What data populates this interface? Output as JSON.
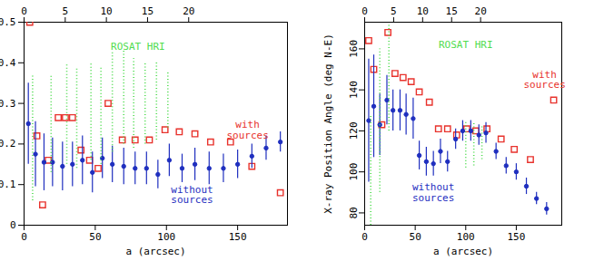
{
  "chart_data": [
    {
      "type": "scatter",
      "xlabel": "a (arcsec)",
      "xlim": [
        0,
        185
      ],
      "xticks": [
        0,
        50,
        100,
        150
      ],
      "x2lim": [
        0,
        32
      ],
      "x2ticks": [
        0,
        5,
        10,
        15,
        20
      ],
      "ylim": [
        0,
        0.5
      ],
      "yticks": [
        0,
        0.1,
        0.2,
        0.3,
        0.4,
        0.5
      ],
      "series": [
        {
          "name": "with sources",
          "type": "scatter",
          "color": "#e8322c",
          "marker": "square",
          "x": [
            4,
            9,
            13,
            17,
            24,
            29,
            34,
            40,
            46,
            52,
            59,
            69,
            78,
            88,
            99,
            109,
            120,
            131,
            145,
            160,
            180
          ],
          "values": [
            0.5,
            0.22,
            0.05,
            0.16,
            0.265,
            0.265,
            0.265,
            0.185,
            0.16,
            0.14,
            0.3,
            0.21,
            0.21,
            0.21,
            0.235,
            0.23,
            0.225,
            0.205,
            0.205,
            0.145,
            0.08
          ]
        },
        {
          "name": "without sources",
          "type": "scatter",
          "color": "#1f2fbf",
          "marker": "circle",
          "x": [
            3,
            8,
            14,
            20,
            27,
            34,
            41,
            48,
            55,
            62,
            70,
            78,
            86,
            94,
            102,
            111,
            120,
            130,
            140,
            150,
            160,
            170,
            180
          ],
          "values": [
            0.25,
            0.175,
            0.155,
            0.155,
            0.145,
            0.15,
            0.16,
            0.13,
            0.165,
            0.15,
            0.145,
            0.14,
            0.14,
            0.125,
            0.16,
            0.14,
            0.15,
            0.14,
            0.14,
            0.15,
            0.17,
            0.19,
            0.205
          ],
          "errors": [
            0.1,
            0.08,
            0.07,
            0.06,
            0.06,
            0.055,
            0.06,
            0.05,
            0.05,
            0.045,
            0.045,
            0.04,
            0.04,
            0.035,
            0.04,
            0.035,
            0.04,
            0.04,
            0.035,
            0.035,
            0.03,
            0.03,
            0.025
          ]
        },
        {
          "name": "ROSAT HRI",
          "type": "range",
          "color": "#4fdc4f",
          "line_style": "dotted",
          "x": [
            6,
            19,
            30,
            37,
            47,
            54,
            62,
            70,
            77,
            85,
            93,
            101
          ],
          "low": [
            0.06,
            0.13,
            0.15,
            0.14,
            0.16,
            0.15,
            0.18,
            0.2,
            0.19,
            0.2,
            0.21,
            0.24
          ],
          "high": [
            0.37,
            0.37,
            0.4,
            0.39,
            0.4,
            0.39,
            0.43,
            0.43,
            0.41,
            0.4,
            0.4,
            0.38
          ]
        }
      ],
      "annotations": [
        {
          "text": "ROSAT HRI",
          "x": 80,
          "y": 0.44,
          "color": "#4fdc4f"
        },
        {
          "text": "with\nsources",
          "x": 157,
          "y": 0.235,
          "color": "#e8322c"
        },
        {
          "text": "without\nsources",
          "x": 118,
          "y": 0.075,
          "color": "#1f2fbf"
        }
      ]
    },
    {
      "type": "scatter",
      "xlabel": "a (arcsec)",
      "ylabel": "X-ray Position Angle (deg N-E)",
      "xlim": [
        0,
        195
      ],
      "xticks": [
        0,
        50,
        100,
        150
      ],
      "x2lim": [
        0,
        34
      ],
      "x2ticks": [
        0,
        5,
        10,
        15,
        20
      ],
      "ylim": [
        74,
        173
      ],
      "yticks": [
        80,
        100,
        120,
        140,
        160
      ],
      "series": [
        {
          "name": "with sources",
          "type": "scatter",
          "color": "#e8322c",
          "marker": "square",
          "x": [
            4,
            9,
            17,
            23,
            30,
            38,
            46,
            54,
            64,
            73,
            82,
            91,
            101,
            110,
            121,
            135,
            148,
            164,
            187
          ],
          "values": [
            164,
            150,
            123,
            168,
            148,
            146,
            144,
            139,
            134,
            121,
            121,
            118,
            121,
            120,
            121,
            116,
            111,
            106,
            135
          ]
        },
        {
          "name": "without sources",
          "type": "scatter",
          "color": "#1f2fbf",
          "marker": "circle",
          "x": [
            4,
            9,
            15,
            22,
            28,
            35,
            41,
            48,
            54,
            61,
            68,
            75,
            82,
            90,
            97,
            105,
            113,
            120,
            130,
            140,
            150,
            160,
            170,
            180
          ],
          "values": [
            125,
            132,
            123,
            135,
            130,
            130,
            128,
            126,
            108,
            105,
            104,
            110,
            105,
            116,
            120,
            120,
            118,
            119,
            110,
            103,
            100,
            93,
            87,
            82
          ],
          "errors": [
            30,
            25,
            15,
            12,
            10,
            10,
            10,
            10,
            7,
            7,
            6,
            6,
            5,
            5,
            5,
            5,
            5,
            5,
            4,
            4,
            4,
            4,
            3,
            3
          ]
        },
        {
          "name": "ROSAT HRI",
          "type": "range",
          "color": "#4fdc4f",
          "line_style": "dotted",
          "x": [
            6,
            15,
            24,
            100,
            108,
            116
          ],
          "low": [
            74,
            90,
            120,
            102,
            103,
            106
          ],
          "high": [
            128,
            160,
            172,
            124,
            124,
            122
          ]
        }
      ],
      "annotations": [
        {
          "text": "ROSAT HRI",
          "x": 100,
          "y": 162,
          "color": "#4fdc4f"
        },
        {
          "text": "with\nsources",
          "x": 178,
          "y": 145,
          "color": "#e8322c"
        },
        {
          "text": "without\nsources",
          "x": 68,
          "y": 90,
          "color": "#1f2fbf"
        }
      ]
    }
  ]
}
